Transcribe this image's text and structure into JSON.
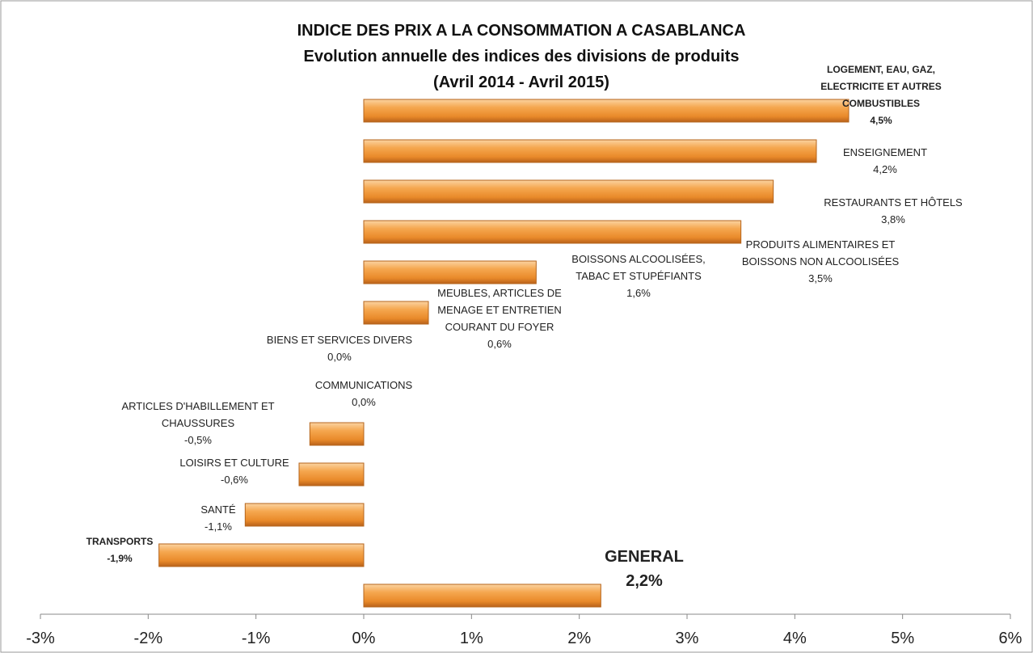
{
  "chart_data": {
    "type": "barh",
    "title": "INDICE DES PRIX A LA CONSOMMATION A CASABLANCA\nEvolution annuelle des indices des divisions de produits\n(Avril 2014 - Avril 2015)",
    "categories": [
      "LOGEMENT, EAU, GAZ,\nELECTRICITE ET AUTRES\nCOMBUSTIBLES",
      "ENSEIGNEMENT",
      "RESTAURANTS ET HÔTELS",
      "PRODUITS ALIMENTAIRES ET\nBOISSONS NON ALCOOLISÉES",
      "BOISSONS ALCOOLISÉES,\nTABAC ET STUPÉFIANTS",
      "MEUBLES, ARTICLES DE\nMENAGE ET ENTRETIEN\nCOURANT DU FOYER",
      "BIENS ET SERVICES DIVERS",
      "COMMUNICATIONS",
      "ARTICLES D'HABILLEMENT ET\nCHAUSSURES",
      "LOISIRS ET CULTURE",
      "SANTÉ",
      "TRANSPORTS",
      "GENERAL"
    ],
    "values": [
      4.5,
      4.2,
      3.8,
      3.5,
      1.6,
      0.6,
      0.0,
      0.0,
      -0.5,
      -0.6,
      -1.1,
      -1.9,
      2.2
    ],
    "value_labels": [
      "4,5%",
      "4,2%",
      "3,8%",
      "3,5%",
      "1,6%",
      "0,6%",
      "0,0%",
      "0,0%",
      "-0,5%",
      "-0,6%",
      "-1,1%",
      "-1,9%",
      "2,2%"
    ],
    "color": "#f29a3a",
    "xlim": [
      -3,
      6
    ],
    "xticks": [
      {
        "value": -3,
        "label": "-3%"
      },
      {
        "value": -2,
        "label": "-2%"
      },
      {
        "value": -1,
        "label": "-1%"
      },
      {
        "value": 0,
        "label": "0%"
      },
      {
        "value": 1,
        "label": "1%"
      },
      {
        "value": 2,
        "label": "2%"
      },
      {
        "value": 3,
        "label": "3%"
      },
      {
        "value": 4,
        "label": "4%"
      },
      {
        "value": 5,
        "label": "5%"
      },
      {
        "value": 6,
        "label": "6%"
      }
    ],
    "grid": false
  }
}
